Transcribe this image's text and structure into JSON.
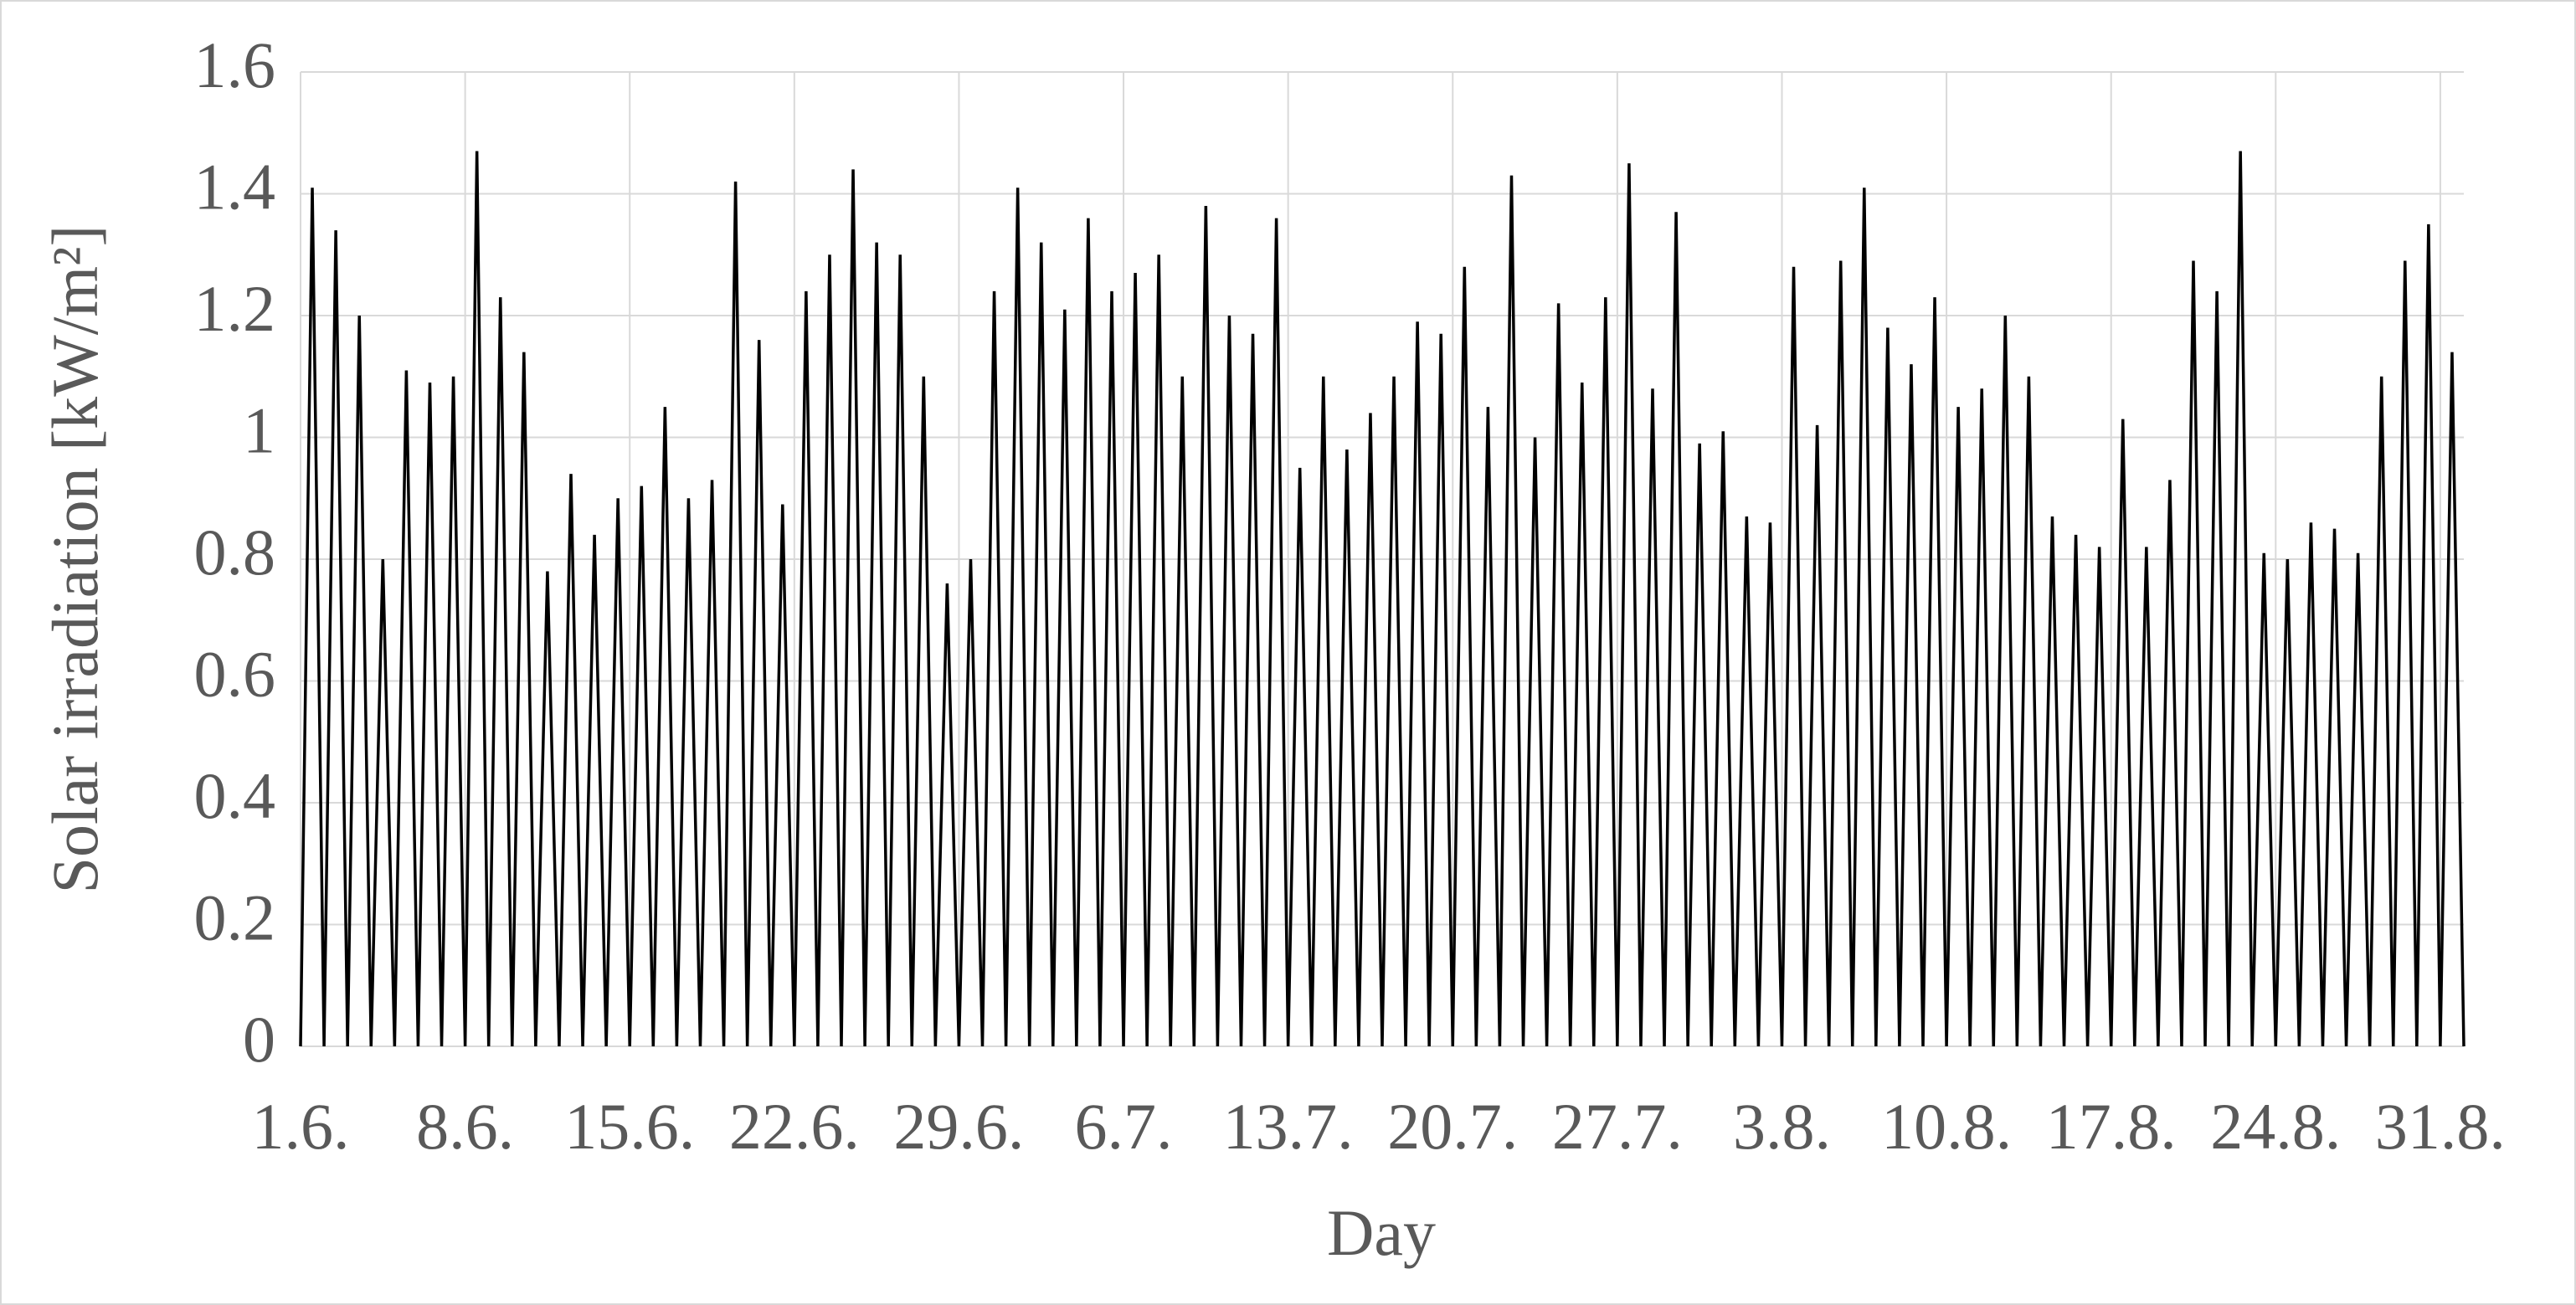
{
  "chart_data": {
    "type": "line",
    "xlabel": "Day",
    "ylabel": "Solar irradiation [kW/m²]",
    "x": [
      0,
      0.5,
      1,
      1.5,
      2,
      2.5,
      3,
      3.5,
      4,
      4.5,
      5,
      5.5,
      6,
      6.5,
      7,
      7.5,
      8,
      8.5,
      9,
      9.5,
      10,
      10.5,
      11,
      11.5,
      12,
      12.5,
      13,
      13.5,
      14,
      14.5,
      15,
      15.5,
      16,
      16.5,
      17,
      17.5,
      18,
      18.5,
      19,
      19.5,
      20,
      20.5,
      21,
      21.5,
      22,
      22.5,
      23,
      23.5,
      24,
      24.5,
      25,
      25.5,
      26,
      26.5,
      27,
      27.5,
      28,
      28.5,
      29,
      29.5,
      30,
      30.5,
      31,
      31.5,
      32,
      32.5,
      33,
      33.5,
      34,
      34.5,
      35,
      35.5,
      36,
      36.5,
      37,
      37.5,
      38,
      38.5,
      39,
      39.5,
      40,
      40.5,
      41,
      41.5,
      42,
      42.5,
      43,
      43.5,
      44,
      44.5,
      45,
      45.5,
      46,
      46.5,
      47,
      47.5,
      48,
      48.5,
      49,
      49.5,
      50,
      50.5,
      51,
      51.5,
      52,
      52.5,
      53,
      53.5,
      54,
      54.5,
      55,
      55.5,
      56,
      56.5,
      57,
      57.5,
      58,
      58.5,
      59,
      59.5,
      60,
      60.5,
      61,
      61.5,
      62,
      62.5,
      63,
      63.5,
      64,
      64.5,
      65,
      65.5,
      66,
      66.5,
      67,
      67.5,
      68,
      68.5,
      69,
      69.5,
      70,
      70.5,
      71,
      71.5,
      72,
      72.5,
      73,
      73.5,
      74,
      74.5,
      75,
      75.5,
      76,
      76.5,
      77,
      77.5,
      78,
      78.5,
      79,
      79.5,
      80,
      80.5,
      81,
      81.5,
      82,
      82.5,
      83,
      83.5,
      84,
      84.5,
      85,
      85.5,
      86,
      86.5,
      87,
      87.5,
      88,
      88.5,
      89,
      89.5,
      90,
      90.5,
      91,
      91.5,
      92
    ],
    "series": [
      {
        "color": "#000000",
        "values": [
          0,
          1.41,
          0,
          1.34,
          0,
          1.2,
          0,
          0.8,
          0,
          1.11,
          0,
          1.09,
          0,
          1.1,
          0,
          1.47,
          0,
          1.23,
          0,
          1.14,
          0,
          0.78,
          0,
          0.94,
          0,
          0.84,
          0,
          0.9,
          0,
          0.92,
          0,
          1.05,
          0,
          0.9,
          0,
          0.93,
          0,
          1.42,
          0,
          1.16,
          0,
          0.89,
          0,
          1.24,
          0,
          1.3,
          0,
          1.44,
          0,
          1.32,
          0,
          1.3,
          0,
          1.1,
          0,
          0.76,
          0,
          0.8,
          0,
          1.24,
          0,
          1.41,
          0,
          1.32,
          0,
          1.21,
          0,
          1.36,
          0,
          1.24,
          0,
          1.27,
          0,
          1.3,
          0,
          1.1,
          0,
          1.38,
          0,
          1.2,
          0,
          1.17,
          0,
          1.36,
          0,
          0.95,
          0,
          1.1,
          0,
          0.98,
          0,
          1.04,
          0,
          1.1,
          0,
          1.19,
          0,
          1.17,
          0,
          1.28,
          0,
          1.05,
          0,
          1.43,
          0,
          1.0,
          0,
          1.22,
          0,
          1.09,
          0,
          1.23,
          0,
          1.45,
          0,
          1.08,
          0,
          1.37,
          0,
          0.99,
          0,
          1.01,
          0,
          0.87,
          0,
          0.86,
          0,
          1.28,
          0,
          1.02,
          0,
          1.29,
          0,
          1.41,
          0,
          1.18,
          0,
          1.12,
          0,
          1.23,
          0,
          1.05,
          0,
          1.08,
          0,
          1.2,
          0,
          1.1,
          0,
          0.87,
          0,
          0.84,
          0,
          0.82,
          0,
          1.03,
          0,
          0.82,
          0,
          0.93,
          0,
          1.29,
          0,
          1.24,
          0,
          1.47,
          0,
          0.81,
          0,
          0.8,
          0,
          0.86,
          0,
          0.85,
          0,
          0.81,
          0,
          1.1,
          0,
          1.29,
          0,
          1.35,
          0,
          1.14,
          0
        ]
      }
    ],
    "xlim": [
      0,
      92
    ],
    "xticks": [
      {
        "value": 0,
        "label": "1.6."
      },
      {
        "value": 7,
        "label": "8.6."
      },
      {
        "value": 14,
        "label": "15.6."
      },
      {
        "value": 21,
        "label": "22.6."
      },
      {
        "value": 28,
        "label": "29.6."
      },
      {
        "value": 35,
        "label": "6.7."
      },
      {
        "value": 42,
        "label": "13.7."
      },
      {
        "value": 49,
        "label": "20.7."
      },
      {
        "value": 56,
        "label": "27.7."
      },
      {
        "value": 63,
        "label": "3.8."
      },
      {
        "value": 70,
        "label": "10.8."
      },
      {
        "value": 77,
        "label": "17.8."
      },
      {
        "value": 84,
        "label": "24.8."
      },
      {
        "value": 91,
        "label": "31.8."
      }
    ],
    "ylim": [
      0,
      1.6
    ],
    "yticks": [
      0,
      0.2,
      0.4,
      0.6,
      0.8,
      1,
      1.2,
      1.4,
      1.6
    ],
    "grid": true
  }
}
